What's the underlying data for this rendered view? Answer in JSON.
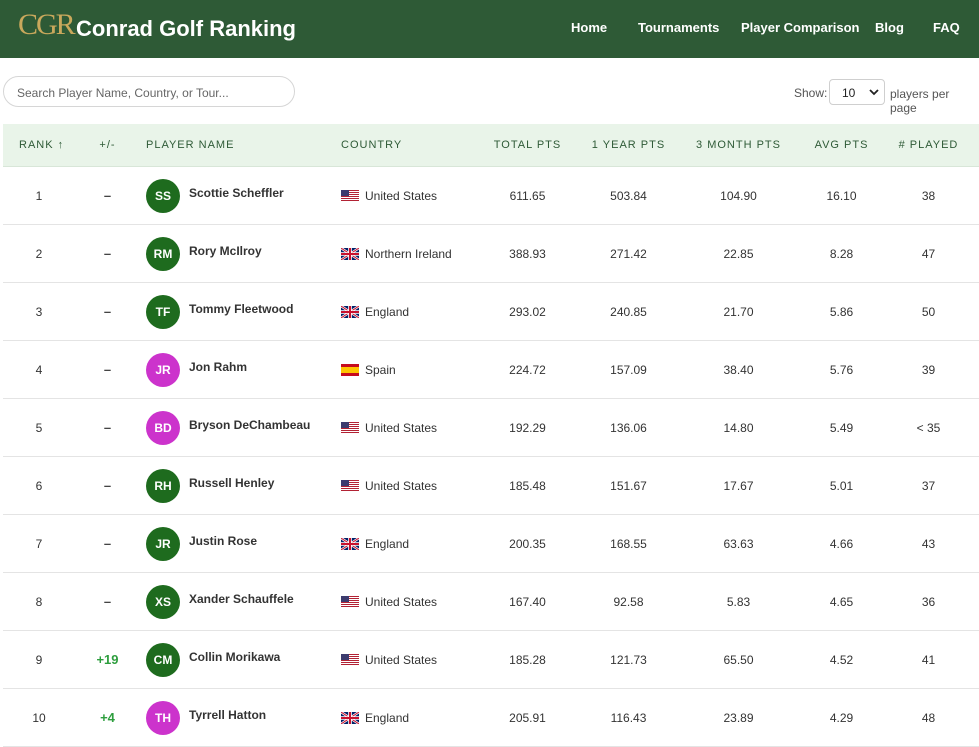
{
  "header": {
    "logo": "CGR",
    "title": "Conrad Golf Ranking",
    "nav": [
      "Home",
      "Tournaments",
      "Player Comparison",
      "Blog",
      "FAQ"
    ]
  },
  "controls": {
    "search_placeholder": "Search Player Name, Country, or Tour...",
    "show_label": "Show:",
    "per_page": "10",
    "per_page_suffix": "players per page"
  },
  "table": {
    "columns": [
      "RANK ↑",
      "+/-",
      "PLAYER NAME",
      "COUNTRY",
      "TOTAL PTS",
      "1 YEAR PTS",
      "3 MONTH PTS",
      "AVG PTS",
      "# PLAYED"
    ],
    "rows": [
      {
        "rank": "1",
        "change": "–",
        "initials": "SS",
        "avatar_color": "#1e6b1e",
        "name": "Scottie Scheffler",
        "flag": "us",
        "country": "United States",
        "total": "611.65",
        "year": "503.84",
        "month": "104.90",
        "avg": "16.10",
        "played": "38"
      },
      {
        "rank": "2",
        "change": "–",
        "initials": "RM",
        "avatar_color": "#1e6b1e",
        "name": "Rory McIlroy",
        "flag": "gb",
        "country": "Northern Ireland",
        "total": "388.93",
        "year": "271.42",
        "month": "22.85",
        "avg": "8.28",
        "played": "47"
      },
      {
        "rank": "3",
        "change": "–",
        "initials": "TF",
        "avatar_color": "#1e6b1e",
        "name": "Tommy Fleetwood",
        "flag": "gb",
        "country": "England",
        "total": "293.02",
        "year": "240.85",
        "month": "21.70",
        "avg": "5.86",
        "played": "50"
      },
      {
        "rank": "4",
        "change": "–",
        "initials": "JR",
        "avatar_color": "#cc33cc",
        "name": "Jon Rahm",
        "flag": "es",
        "country": "Spain",
        "total": "224.72",
        "year": "157.09",
        "month": "38.40",
        "avg": "5.76",
        "played": "39"
      },
      {
        "rank": "5",
        "change": "–",
        "initials": "BD",
        "avatar_color": "#cc33cc",
        "name": "Bryson DeChambeau",
        "flag": "us",
        "country": "United States",
        "total": "192.29",
        "year": "136.06",
        "month": "14.80",
        "avg": "5.49",
        "played": "< 35"
      },
      {
        "rank": "6",
        "change": "–",
        "initials": "RH",
        "avatar_color": "#1e6b1e",
        "name": "Russell Henley",
        "flag": "us",
        "country": "United States",
        "total": "185.48",
        "year": "151.67",
        "month": "17.67",
        "avg": "5.01",
        "played": "37"
      },
      {
        "rank": "7",
        "change": "–",
        "initials": "JR",
        "avatar_color": "#1e6b1e",
        "name": "Justin Rose",
        "flag": "gb",
        "country": "England",
        "total": "200.35",
        "year": "168.55",
        "month": "63.63",
        "avg": "4.66",
        "played": "43"
      },
      {
        "rank": "8",
        "change": "–",
        "initials": "XS",
        "avatar_color": "#1e6b1e",
        "name": "Xander Schauffele",
        "flag": "us",
        "country": "United States",
        "total": "167.40",
        "year": "92.58",
        "month": "5.83",
        "avg": "4.65",
        "played": "36"
      },
      {
        "rank": "9",
        "change": "+19",
        "initials": "CM",
        "avatar_color": "#1e6b1e",
        "name": "Collin Morikawa",
        "flag": "us",
        "country": "United States",
        "total": "185.28",
        "year": "121.73",
        "month": "65.50",
        "avg": "4.52",
        "played": "41"
      },
      {
        "rank": "10",
        "change": "+4",
        "initials": "TH",
        "avatar_color": "#cc33cc",
        "name": "Tyrrell Hatton",
        "flag": "gb",
        "country": "England",
        "total": "205.91",
        "year": "116.43",
        "month": "23.89",
        "avg": "4.29",
        "played": "48"
      }
    ]
  }
}
